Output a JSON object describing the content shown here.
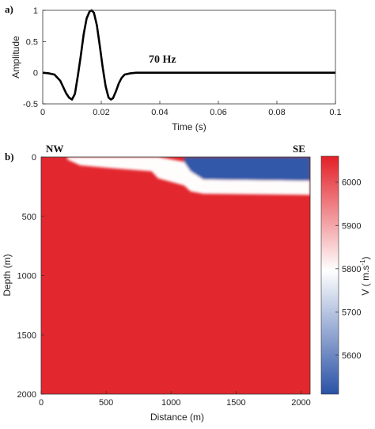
{
  "chart_data": [
    {
      "type": "line",
      "panel_label": "a)",
      "title": "",
      "xlabel": "Time (s)",
      "ylabel": "Amplitude",
      "xlim": [
        0,
        0.1
      ],
      "ylim": [
        -0.5,
        1
      ],
      "x_ticks": [
        0,
        0.02,
        0.04,
        0.06,
        0.08,
        0.1
      ],
      "x_tick_labels": [
        "0",
        "0.02",
        "0.04",
        "0.06",
        "0.08",
        "0.1"
      ],
      "y_ticks": [
        -0.5,
        0,
        0.5,
        1
      ],
      "y_tick_labels": [
        "-0.5",
        "0",
        "0.5",
        "1"
      ],
      "annotation": "70 Hz",
      "series": [
        {
          "color": "#000000",
          "x": [
            0,
            0.002,
            0.004,
            0.006,
            0.008,
            0.009,
            0.01,
            0.011,
            0.012,
            0.013,
            0.014,
            0.015,
            0.016,
            0.0167,
            0.0175,
            0.0185,
            0.0195,
            0.0205,
            0.0215,
            0.0225,
            0.0233,
            0.024,
            0.025,
            0.026,
            0.027,
            0.028,
            0.03,
            0.032,
            0.034,
            0.04,
            0.1
          ],
          "y": [
            0,
            -0.01,
            -0.03,
            -0.13,
            -0.33,
            -0.4,
            -0.43,
            -0.34,
            -0.05,
            0.27,
            0.62,
            0.87,
            0.98,
            1.0,
            0.96,
            0.76,
            0.43,
            0.08,
            -0.22,
            -0.4,
            -0.43,
            -0.41,
            -0.3,
            -0.17,
            -0.08,
            -0.03,
            -0.01,
            0,
            0,
            0,
            0
          ]
        }
      ]
    },
    {
      "type": "heatmap",
      "panel_label": "b)",
      "title": "",
      "xlabel": "Distance (m)",
      "ylabel": "Depth (m)",
      "xlim": [
        0,
        2070
      ],
      "ylim": [
        2000,
        0
      ],
      "x_ticks": [
        0,
        500,
        1000,
        1500,
        2000
      ],
      "x_tick_labels": [
        "0",
        "500",
        "1000",
        "1500",
        "2000"
      ],
      "y_ticks": [
        0,
        500,
        1000,
        1500,
        2000
      ],
      "y_tick_labels": [
        "0",
        "500",
        "1000",
        "1500",
        "2000"
      ],
      "left_label": "NW",
      "right_label": "SE",
      "colorbar": {
        "label": "V ( m.s",
        "label_sup": "-1",
        "label_end": ")",
        "range": [
          5510,
          6060
        ],
        "ticks": [
          5600,
          5700,
          5800,
          5900,
          6000
        ],
        "tick_labels": [
          "5600",
          "5700",
          "5800",
          "5900",
          "6000"
        ],
        "colors": [
          "#2a52a6",
          "#ffffff",
          "#e21f26"
        ]
      },
      "background_velocity": 6050,
      "layers": [
        {
          "velocity": 5520,
          "distance": [
            1100,
            1150,
            1250,
            2070
          ],
          "top": [
            0,
            0,
            0,
            0
          ],
          "bottom": [
            40,
            120,
            190,
            200
          ]
        },
        {
          "velocity": 5800,
          "distance": [
            200,
            300,
            500,
            850,
            900,
            1100,
            1150,
            1250,
            2070
          ],
          "top": [
            0,
            0,
            0,
            0,
            0,
            40,
            120,
            190,
            200
          ],
          "bottom": [
            20,
            70,
            90,
            120,
            180,
            240,
            290,
            310,
            320
          ]
        }
      ]
    }
  ]
}
